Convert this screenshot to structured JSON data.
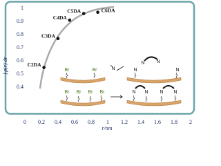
{
  "chart_data": {
    "type": "scatter",
    "y_label": "∫ ρ(r) dr",
    "x_label": "r/nm",
    "x": [
      0.23,
      0.4,
      0.54,
      0.71,
      0.88
    ],
    "values": [
      0.55,
      0.77,
      0.91,
      0.96,
      0.97
    ],
    "point_labels": [
      "C2DA",
      "C3DA",
      "C4DA",
      "C5DA",
      "C6DA"
    ],
    "color": "#111111",
    "xlim": [
      0,
      2
    ],
    "xticks": [
      0,
      0.2,
      0.4,
      0.6,
      0.8,
      1,
      1.2,
      1.4,
      1.6,
      1.8,
      2
    ],
    "ylim": [
      0.2,
      1.05
    ],
    "yticks": [
      0.4,
      0.5,
      0.6,
      0.7,
      0.8,
      0.9,
      1
    ]
  },
  "schematic": {
    "top_left": [
      "Br",
      "Br"
    ],
    "top_reagent": "N",
    "top_right": [
      "N",
      "N",
      "N",
      "N"
    ],
    "bottom_left": [
      "Br",
      "Br",
      "Br",
      "Br"
    ],
    "bottom_right": [
      "N",
      "N",
      "N",
      "N"
    ]
  }
}
